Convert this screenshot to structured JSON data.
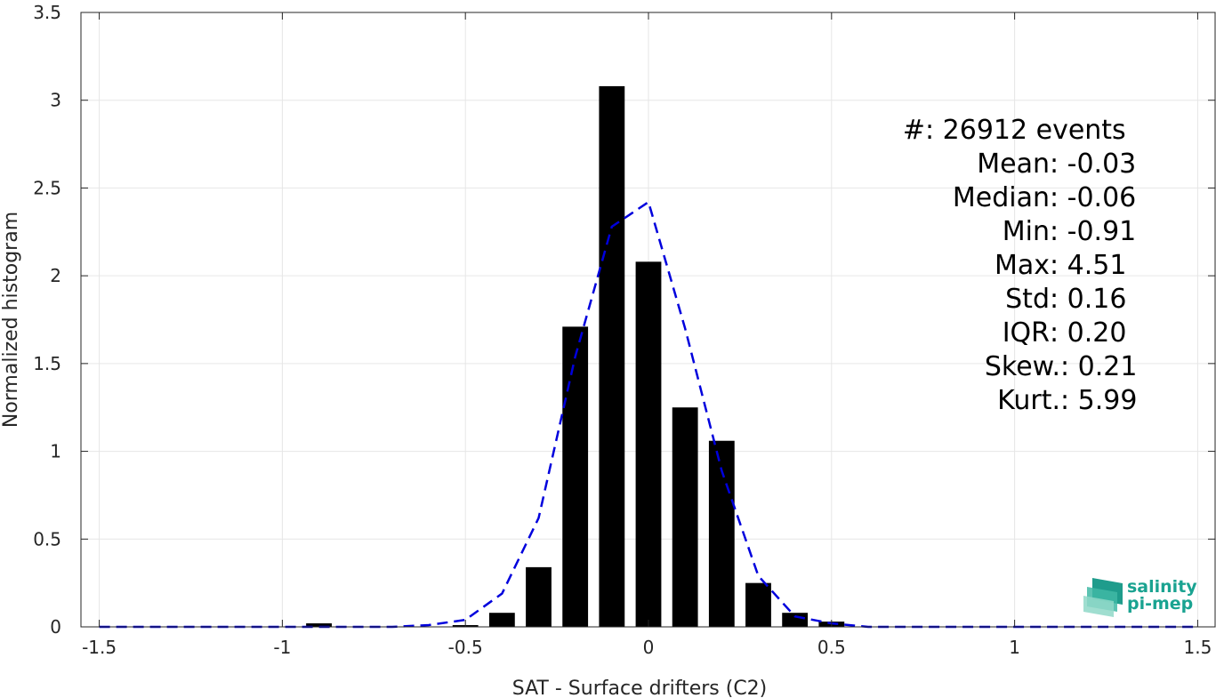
{
  "chart_data": {
    "type": "bar",
    "title": "",
    "xlabel": "SAT - Surface drifters (C2)",
    "ylabel": "Normalized histogram",
    "xlim": [
      -1.55,
      1.55
    ],
    "ylim": [
      0,
      3.5
    ],
    "xticks": [
      -1.5,
      -1,
      -0.5,
      0,
      0.5,
      1,
      1.5
    ],
    "xtick_labels": [
      "-1.5",
      "-1",
      "-0.5",
      "0",
      "0.5",
      "1",
      "1.5"
    ],
    "yticks": [
      0,
      0.5,
      1,
      1.5,
      2,
      2.5,
      3,
      3.5
    ],
    "ytick_labels": [
      "0",
      "0.5",
      "1",
      "1.5",
      "2",
      "2.5",
      "3",
      "3.5"
    ],
    "grid": true,
    "bar_color": "#000000",
    "bar_width": 0.07,
    "bars": {
      "x": [
        -0.9,
        -0.5,
        -0.4,
        -0.3,
        -0.2,
        -0.1,
        0.0,
        0.1,
        0.2,
        0.3,
        0.4,
        0.5
      ],
      "values": [
        0.02,
        0.01,
        0.08,
        0.34,
        1.71,
        3.08,
        2.08,
        1.25,
        1.06,
        0.25,
        0.08,
        0.03
      ]
    },
    "fit_line": {
      "style": "dashed",
      "color": "#0000dd",
      "x": [
        -1.5,
        -1.2,
        -0.9,
        -0.7,
        -0.6,
        -0.5,
        -0.4,
        -0.3,
        -0.2,
        -0.1,
        0.0,
        0.1,
        0.2,
        0.3,
        0.4,
        0.5,
        0.6,
        0.8,
        1.0,
        1.5
      ],
      "values": [
        0.0,
        0.0,
        0.0,
        0.0,
        0.01,
        0.04,
        0.19,
        0.62,
        1.54,
        2.28,
        2.42,
        1.7,
        0.89,
        0.29,
        0.06,
        0.02,
        0.0,
        0.0,
        0.0,
        0.0
      ]
    },
    "annotations": [
      {
        "label": "#  ",
        "value": ": 26912 events"
      },
      {
        "label": "Mean ",
        "value": ": -0.03"
      },
      {
        "label": "Median ",
        "value": ": -0.06"
      },
      {
        "label": "Min ",
        "value": ": -0.91"
      },
      {
        "label": "Max ",
        "value": ": 4.51"
      },
      {
        "label": "Std ",
        "value": ": 0.16"
      },
      {
        "label": "IQR ",
        "value": ": 0.20"
      },
      {
        "label": "Skew. ",
        "value": ": 0.21"
      },
      {
        "label": "Kurt. ",
        "value": ": 5.99"
      }
    ]
  },
  "logo": {
    "line1": "salinity",
    "line2": "pi-mep"
  }
}
